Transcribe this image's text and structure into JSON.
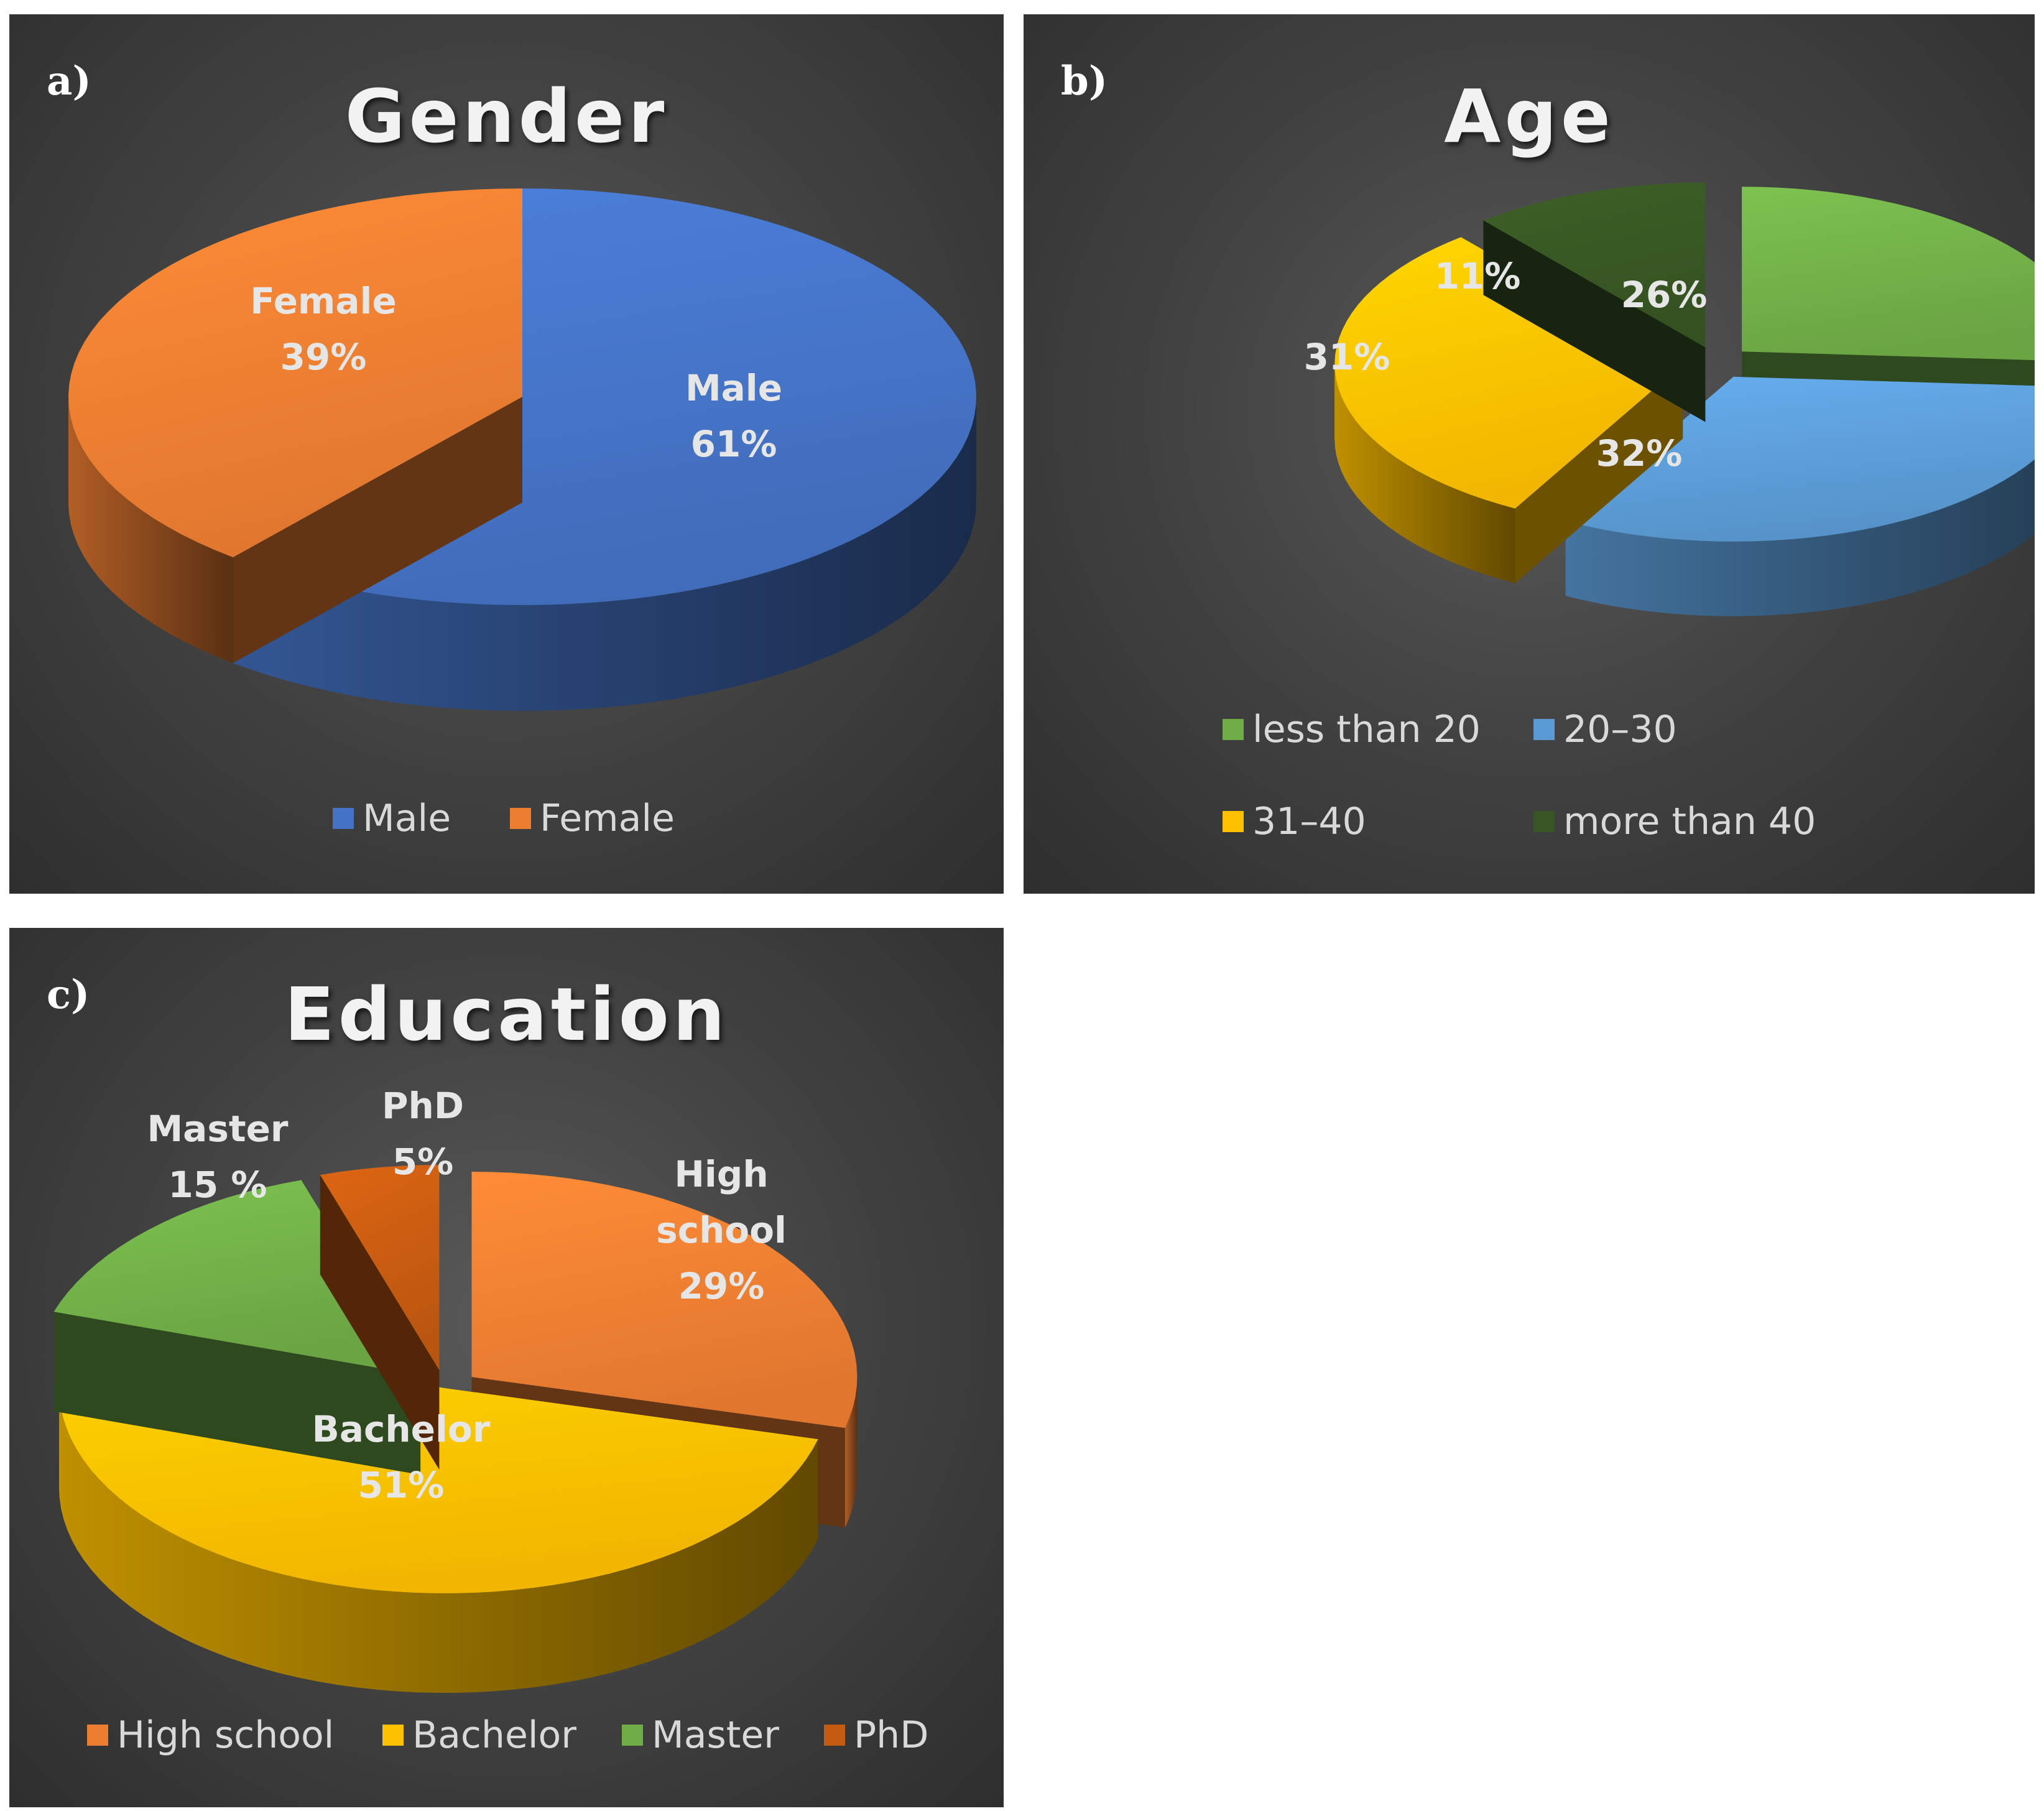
{
  "chart_data": [
    {
      "panel": "a)",
      "type": "pie",
      "title": "Gender",
      "categories": [
        "Male",
        "Female"
      ],
      "values": [
        61,
        39
      ],
      "labels": [
        [
          "Male",
          "61%"
        ],
        [
          "Female",
          "39%"
        ]
      ],
      "legend": [
        "Male",
        "Female"
      ],
      "colors": [
        "#4472c4",
        "#ed7d31"
      ],
      "legend_position": "bottom",
      "style": "3d"
    },
    {
      "panel": "b)",
      "type": "pie",
      "title": "Age",
      "categories": [
        "less than 20",
        "20–30",
        "31–40",
        "more than 40"
      ],
      "values": [
        26,
        32,
        31,
        11
      ],
      "labels": [
        [
          "26%"
        ],
        [
          "32%"
        ],
        [
          "31%"
        ],
        [
          "11%"
        ]
      ],
      "legend": [
        "less than 20",
        "20–30",
        "31–40",
        "more than 40"
      ],
      "colors": [
        "#70ad47",
        "#5b9bd5",
        "#ffc000",
        "#375623"
      ],
      "legend_position": "bottom",
      "style": "3d-exploded"
    },
    {
      "panel": "c)",
      "type": "pie",
      "title": "Education",
      "categories": [
        "High school",
        "Bachelor",
        "Master",
        "PhD"
      ],
      "values": [
        29,
        51,
        15,
        5
      ],
      "labels": [
        [
          "High",
          "school",
          "29%"
        ],
        [
          "Bachelor",
          "51%"
        ],
        [
          "Master",
          "15 %"
        ],
        [
          "PhD",
          "5%"
        ]
      ],
      "legend": [
        "High school",
        "Bachelor",
        "Master",
        "PhD"
      ],
      "colors": [
        "#ed7d31",
        "#ffc000",
        "#70ad47",
        "#c55a11"
      ],
      "legend_position": "bottom",
      "style": "3d-exploded"
    }
  ]
}
